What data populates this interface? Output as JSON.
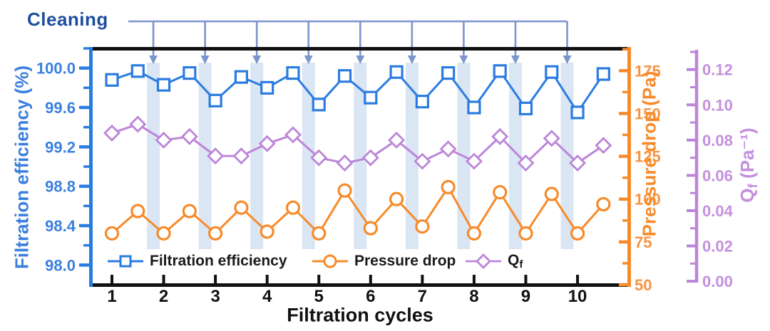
{
  "chart_data": {
    "type": "line",
    "xlabel": "Filtration cycles",
    "x": [
      1,
      1.5,
      2,
      2.5,
      3,
      3.5,
      4,
      4.5,
      5,
      5.5,
      6,
      6.5,
      7,
      7.5,
      8,
      8.5,
      9,
      9.5,
      10,
      10.5
    ],
    "xlim": [
      0.56,
      10.96
    ],
    "x_tick_values": [
      1,
      2,
      3,
      4,
      5,
      6,
      7,
      8,
      9,
      10
    ],
    "x_tick_labels": [
      "1",
      "2",
      "3",
      "4",
      "5",
      "6",
      "7",
      "8",
      "9",
      "10"
    ],
    "series": [
      {
        "name": "Filtration efficiency",
        "axis": "left",
        "marker": "square",
        "color": "#2b7ce0",
        "values": [
          99.88,
          99.97,
          99.83,
          99.95,
          99.67,
          99.91,
          99.8,
          99.95,
          99.63,
          99.92,
          99.7,
          99.96,
          99.66,
          99.95,
          99.6,
          99.97,
          99.59,
          99.96,
          99.55,
          99.94
        ]
      },
      {
        "name": "Pressure drop",
        "axis": "right",
        "marker": "circle",
        "color": "#f78b2b",
        "values": [
          80,
          93,
          80,
          93,
          80,
          95,
          81,
          95,
          80,
          105,
          83,
          100,
          84,
          107,
          80,
          104,
          80,
          103,
          80,
          97
        ]
      },
      {
        "name": "Qf",
        "axis": "far_right",
        "marker": "diamond",
        "color": "#bc86d8",
        "values": [
          0.084,
          0.089,
          0.08,
          0.082,
          0.071,
          0.071,
          0.078,
          0.083,
          0.07,
          0.067,
          0.07,
          0.08,
          0.068,
          0.075,
          0.068,
          0.082,
          0.067,
          0.081,
          0.067,
          0.077
        ]
      }
    ],
    "axes": {
      "left": {
        "label": "Filtration efficiency (%)",
        "color": "#2b7ce0",
        "text_color": "#3b80dd",
        "min": 97.8,
        "max": 100.2,
        "tick_values": [
          98.0,
          98.4,
          98.8,
          99.2,
          99.6,
          100.0
        ],
        "tick_labels": [
          "98.0",
          "98.4",
          "98.8",
          "99.2",
          "99.6",
          "100.0"
        ],
        "minor_ticks": [
          98.2,
          98.6,
          99.0,
          99.4,
          99.8,
          100.2
        ]
      },
      "right": {
        "label": "Pressure drop (Pa)",
        "color": "#f78b2b",
        "text_color": "#f79440",
        "min": 50,
        "max": 188,
        "tick_values": [
          50,
          75,
          100,
          125,
          150,
          175
        ],
        "tick_labels": [
          "50",
          "75",
          "100",
          "125",
          "150",
          "175"
        ],
        "minor_ticks": [
          62.5,
          87.5,
          112.5,
          137.5,
          162.5,
          187.5
        ]
      },
      "far_right": {
        "label_main": "Q",
        "label_sub": "f",
        "label_rest": " (Pa⁻¹)",
        "color": "#bc86d8",
        "text_color": "#c490de",
        "min": -0.002,
        "max": 0.132,
        "tick_values": [
          0.0,
          0.02,
          0.04,
          0.06,
          0.08,
          0.1,
          0.12
        ],
        "tick_labels": [
          "0.00",
          "0.02",
          "0.04",
          "0.06",
          "0.08",
          "0.10",
          "0.12"
        ],
        "minor_ticks": [
          0.01,
          0.03,
          0.05,
          0.07,
          0.09,
          0.11,
          0.13
        ]
      }
    },
    "cleaning": {
      "label": "Cleaning",
      "arrow_color": "#7d95ce",
      "band_color": "#dbe6f5",
      "positions": [
        1.8,
        2.8,
        3.8,
        4.8,
        5.8,
        6.8,
        7.8,
        8.8,
        9.8
      ]
    },
    "legend": {
      "filtration_label": "Filtration efficiency",
      "pressure_label": "Pressure drop",
      "qf_main": "Q",
      "qf_sub": "f"
    },
    "grid": false,
    "legend_position": "bottom-inside"
  }
}
